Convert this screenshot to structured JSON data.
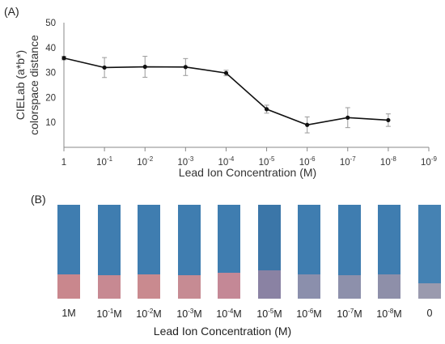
{
  "panel_a_label": "(A)",
  "panel_b_label": "(B)",
  "chart_data": {
    "type": "line",
    "xlabel": "Lead Ion Concentration (M)",
    "ylabel_line1": "CIELab (a*b*)",
    "ylabel_line2": "colorspace distance",
    "ylim": [
      0,
      50
    ],
    "yticks": [
      10,
      20,
      30,
      40,
      50
    ],
    "grid": false,
    "x_ticks": [
      {
        "base": "1",
        "exp": ""
      },
      {
        "base": "10",
        "exp": "-1"
      },
      {
        "base": "10",
        "exp": "-2"
      },
      {
        "base": "10",
        "exp": "-3"
      },
      {
        "base": "10",
        "exp": "-4"
      },
      {
        "base": "10",
        "exp": "-5"
      },
      {
        "base": "10",
        "exp": "-6"
      },
      {
        "base": "10",
        "exp": "-7"
      },
      {
        "base": "10",
        "exp": "-8"
      },
      {
        "base": "10",
        "exp": "-9"
      }
    ],
    "series": [
      {
        "x": [
          0,
          1,
          2,
          3,
          4,
          5,
          6,
          7,
          8
        ],
        "values": [
          35.8,
          32.0,
          32.3,
          32.2,
          29.8,
          15.3,
          9.0,
          11.9,
          10.9
        ],
        "error": [
          0.7,
          4.0,
          4.2,
          3.4,
          1.1,
          1.6,
          3.2,
          4.0,
          2.5
        ]
      }
    ],
    "line_color": "#111111"
  },
  "strips": {
    "xlabel": "Lead Ion Concentration (M)",
    "items": [
      {
        "base": "1M",
        "exp": "",
        "unit": "",
        "top_color": "#3f7db0",
        "bottom_color": "#c9878d",
        "pink_fraction": 0.26
      },
      {
        "base": "10",
        "exp": "-1",
        "unit": "M",
        "top_color": "#3f7db0",
        "bottom_color": "#c78992",
        "pink_fraction": 0.25
      },
      {
        "base": "10",
        "exp": "-2",
        "unit": "M",
        "top_color": "#3f7db0",
        "bottom_color": "#c98a8f",
        "pink_fraction": 0.26
      },
      {
        "base": "10",
        "exp": "-3",
        "unit": "M",
        "top_color": "#3f7db0",
        "bottom_color": "#c68b93",
        "pink_fraction": 0.25
      },
      {
        "base": "10",
        "exp": "-4",
        "unit": "M",
        "top_color": "#3f7db0",
        "bottom_color": "#c48896",
        "pink_fraction": 0.28
      },
      {
        "base": "10",
        "exp": "-5",
        "unit": "M",
        "top_color": "#3b76a8",
        "bottom_color": "#8a82a3",
        "pink_fraction": 0.3
      },
      {
        "base": "10",
        "exp": "-6",
        "unit": "M",
        "top_color": "#3f7db0",
        "bottom_color": "#8b8fac",
        "pink_fraction": 0.26
      },
      {
        "base": "10",
        "exp": "-7",
        "unit": "M",
        "top_color": "#3f7db0",
        "bottom_color": "#8d90ab",
        "pink_fraction": 0.25
      },
      {
        "base": "10",
        "exp": "-8",
        "unit": "M",
        "top_color": "#3f7db0",
        "bottom_color": "#8e8fa9",
        "pink_fraction": 0.26
      },
      {
        "base": "0",
        "exp": "",
        "unit": "",
        "top_color": "#4582b3",
        "bottom_color": "#9a9aae",
        "pink_fraction": 0.16
      }
    ]
  }
}
